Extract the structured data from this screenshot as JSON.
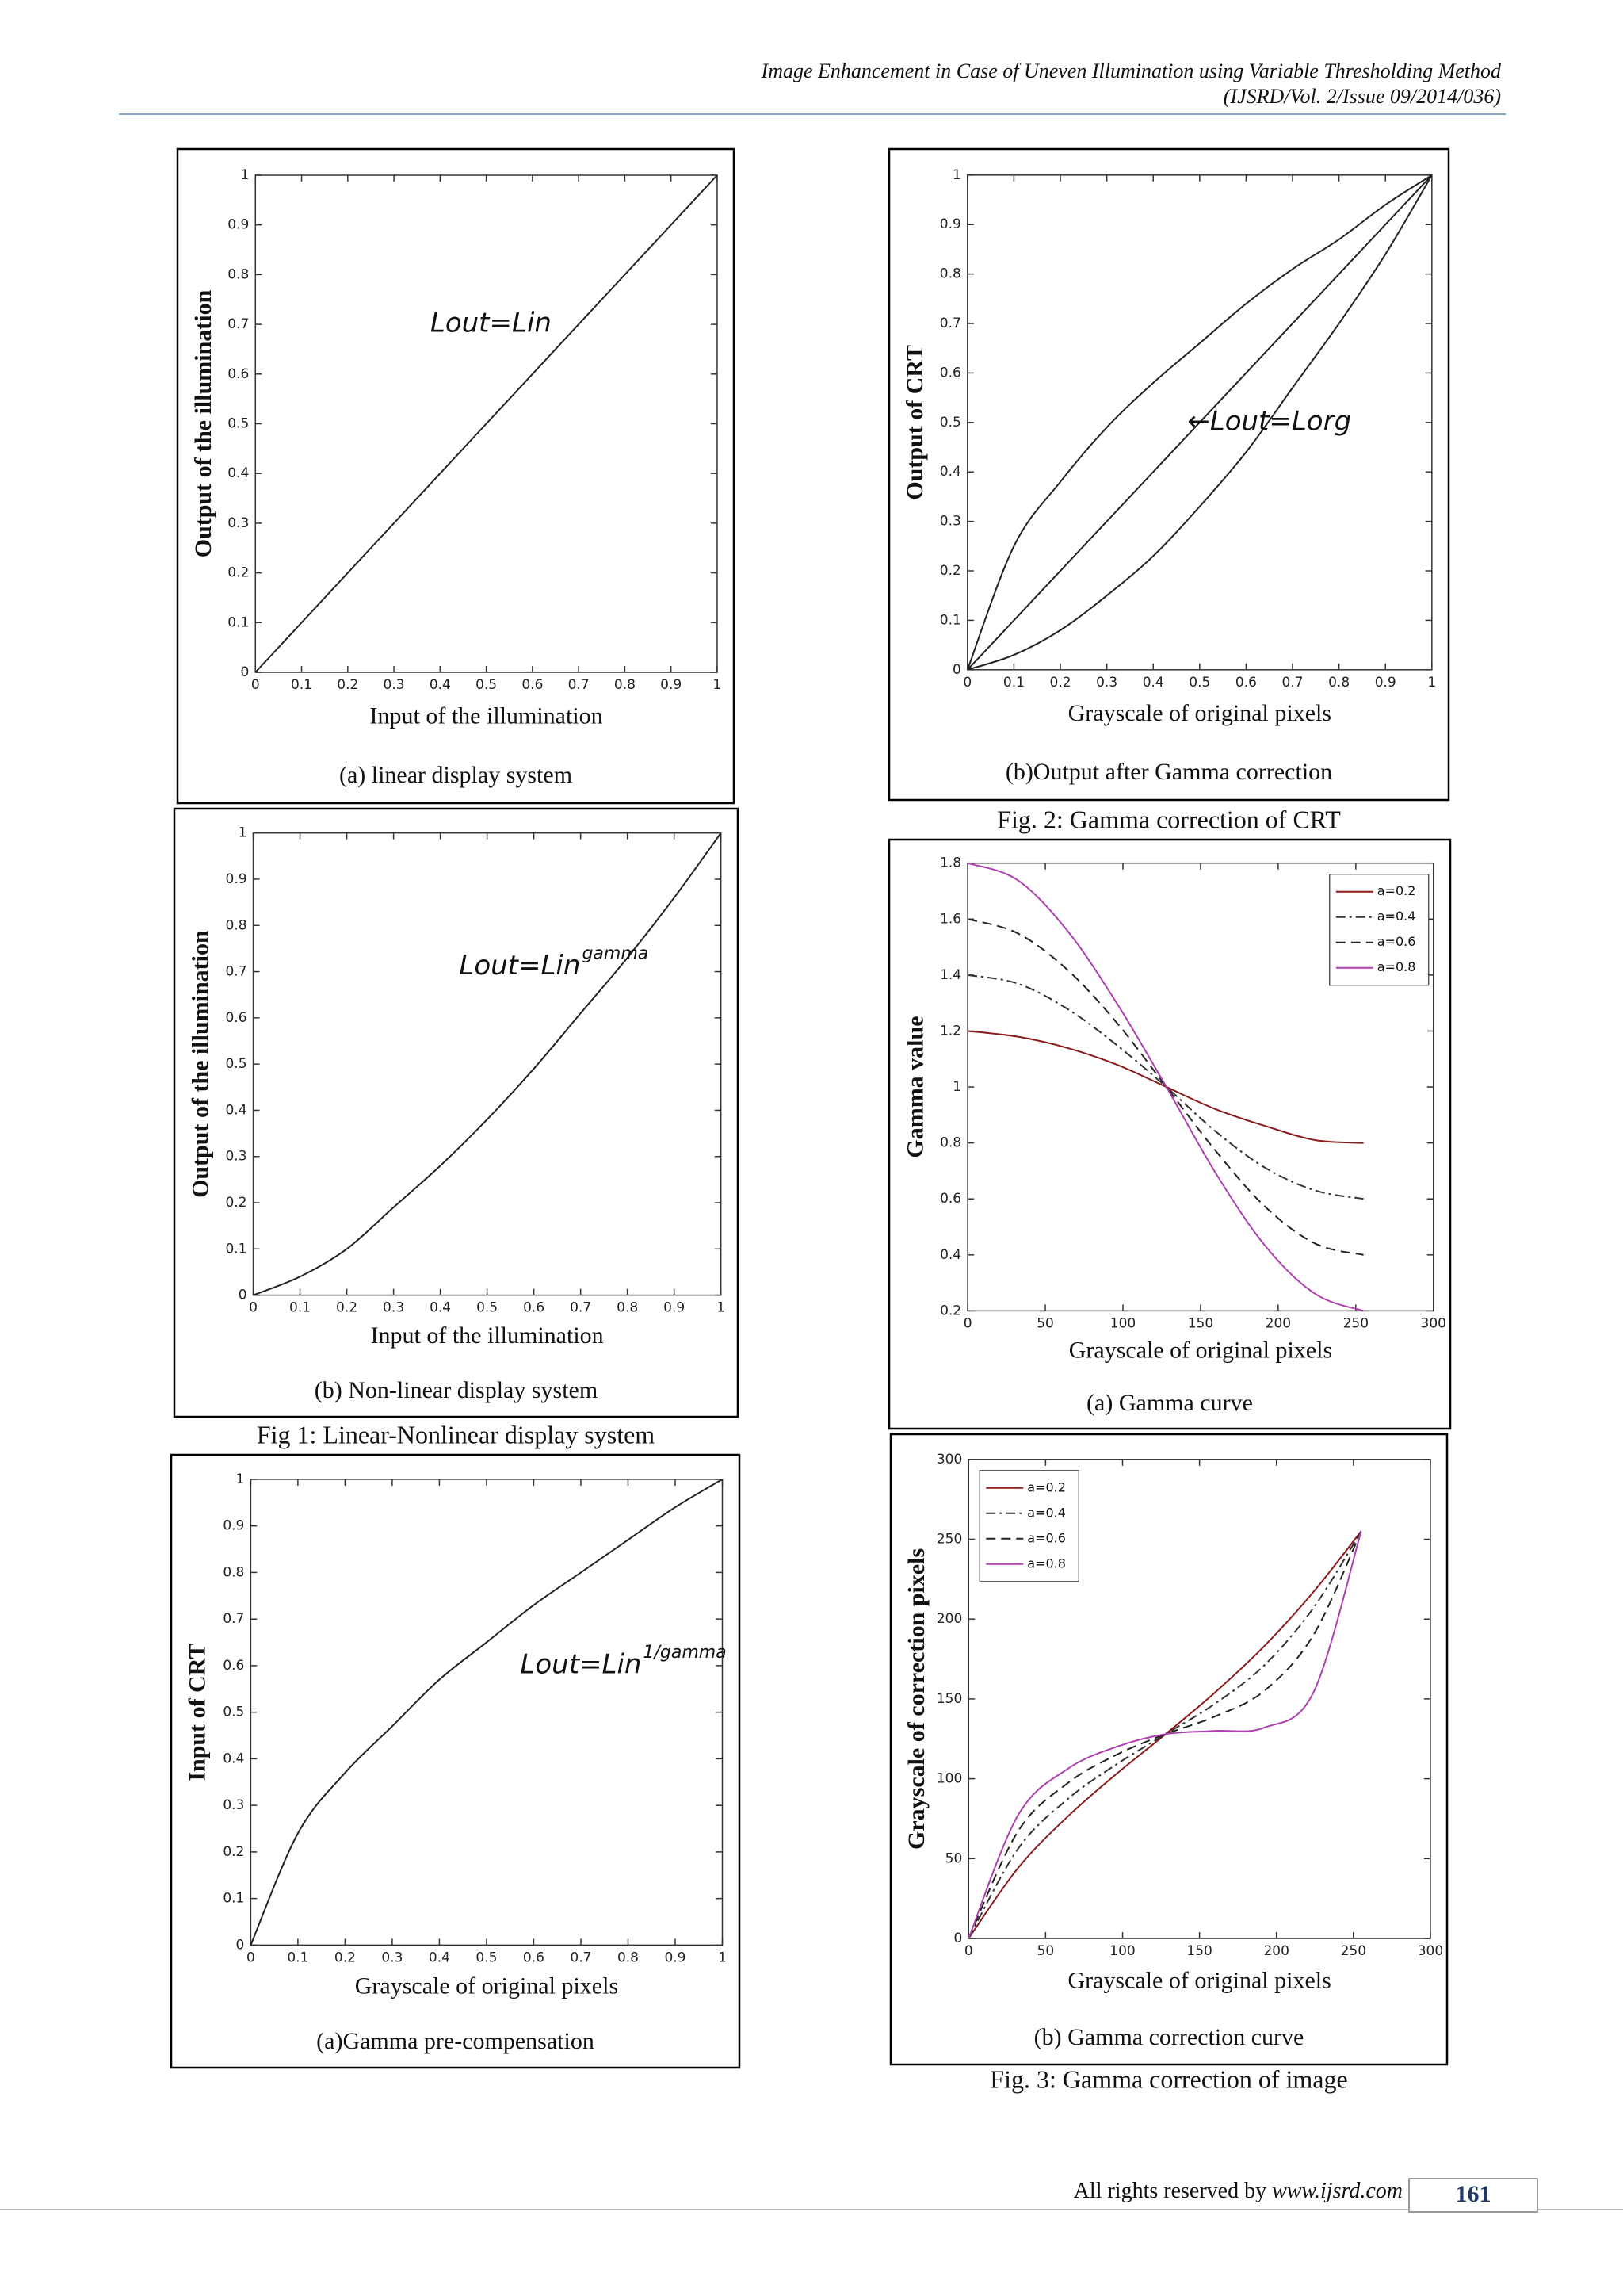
{
  "header": {
    "title": "Image Enhancement in Case of Uneven Illumination using Variable Thresholding Method",
    "citation": "(IJSRD/Vol. 2/Issue 09/2014/036)"
  },
  "captions": [
    "Fig. 2: Gamma correction of CRT",
    "Fig 1: Linear-Nonlinear display system",
    "Fig. 3: Gamma correction of image"
  ],
  "chart_data": [
    {
      "type": "line",
      "title": "(a) linear display system",
      "x_label": "Input of the illumination",
      "y_label": "Output of the illumination",
      "annotation": "Lout=Lin",
      "x": [
        0,
        0.1,
        0.2,
        0.3,
        0.4,
        0.5,
        0.6,
        0.7,
        0.8,
        0.9,
        1
      ],
      "series": [
        {
          "color": "#222222",
          "dash": "solid",
          "values": [
            0,
            0.1,
            0.2,
            0.3,
            0.4,
            0.5,
            0.6,
            0.7,
            0.8,
            0.9,
            1
          ]
        }
      ],
      "xlim": [
        0,
        1
      ],
      "ylim": [
        0,
        1
      ],
      "xticks": [
        0,
        0.1,
        0.2,
        0.3,
        0.4,
        0.5,
        0.6,
        0.7,
        0.8,
        0.9,
        1
      ],
      "yticks": [
        0,
        0.1,
        0.2,
        0.3,
        0.4,
        0.5,
        0.6,
        0.7,
        0.8,
        0.9,
        1
      ]
    },
    {
      "type": "line",
      "title": "(b)Output after Gamma correction",
      "x_label": "Grayscale of original pixels",
      "y_label": "Output of CRT",
      "annotation": "←Lout=Lorg",
      "x": [
        0,
        0.1,
        0.2,
        0.3,
        0.4,
        0.5,
        0.6,
        0.7,
        0.8,
        0.9,
        1
      ],
      "series": [
        {
          "color": "#222222",
          "dash": "solid",
          "values": [
            0,
            0.25,
            0.38,
            0.49,
            0.58,
            0.66,
            0.74,
            0.81,
            0.87,
            0.94,
            1
          ]
        },
        {
          "color": "#222222",
          "dash": "solid",
          "values": [
            0,
            0.1,
            0.2,
            0.3,
            0.4,
            0.5,
            0.6,
            0.7,
            0.8,
            0.9,
            1
          ]
        },
        {
          "color": "#222222",
          "dash": "solid",
          "values": [
            0,
            0.03,
            0.08,
            0.15,
            0.23,
            0.33,
            0.44,
            0.57,
            0.7,
            0.84,
            1
          ]
        }
      ],
      "xlim": [
        0,
        1
      ],
      "ylim": [
        0,
        1
      ],
      "xticks": [
        0,
        0.1,
        0.2,
        0.3,
        0.4,
        0.5,
        0.6,
        0.7,
        0.8,
        0.9,
        1
      ],
      "yticks": [
        0,
        0.1,
        0.2,
        0.3,
        0.4,
        0.5,
        0.6,
        0.7,
        0.8,
        0.9,
        1
      ]
    },
    {
      "type": "line",
      "title": "(b) Non-linear display system",
      "x_label": "Input of the illumination",
      "y_label": "Output of the illumination",
      "annotation": "Lout=Lin",
      "annotation_sup": "gamma",
      "x": [
        0,
        0.1,
        0.2,
        0.3,
        0.4,
        0.5,
        0.6,
        0.7,
        0.8,
        0.9,
        1
      ],
      "series": [
        {
          "color": "#222222",
          "dash": "solid",
          "values": [
            0,
            0.04,
            0.1,
            0.19,
            0.28,
            0.38,
            0.49,
            0.61,
            0.73,
            0.86,
            1
          ]
        }
      ],
      "xlim": [
        0,
        1
      ],
      "ylim": [
        0,
        1
      ],
      "xticks": [
        0,
        0.1,
        0.2,
        0.3,
        0.4,
        0.5,
        0.6,
        0.7,
        0.8,
        0.9,
        1
      ],
      "yticks": [
        0,
        0.1,
        0.2,
        0.3,
        0.4,
        0.5,
        0.6,
        0.7,
        0.8,
        0.9,
        1
      ]
    },
    {
      "type": "line",
      "title": "(a) Gamma curve",
      "x_label": "Grayscale of original pixels",
      "y_label": "Gamma value",
      "legend": "upper right",
      "x": [
        0,
        32,
        64,
        96,
        128,
        160,
        192,
        224,
        255
      ],
      "series": [
        {
          "name": "a=0.2",
          "color": "#8b1a1a",
          "dash": "solid",
          "values": [
            1.2,
            1.18,
            1.14,
            1.08,
            1.0,
            0.92,
            0.86,
            0.81,
            0.8
          ]
        },
        {
          "name": "a=0.4",
          "color": "#333333",
          "dash": "dashdot",
          "values": [
            1.4,
            1.37,
            1.28,
            1.15,
            1.0,
            0.84,
            0.71,
            0.63,
            0.6
          ]
        },
        {
          "name": "a=0.6",
          "color": "#222222",
          "dash": "dashed",
          "values": [
            1.6,
            1.55,
            1.42,
            1.23,
            1.0,
            0.77,
            0.57,
            0.44,
            0.4
          ]
        },
        {
          "name": "a=0.8",
          "color": "#b040b0",
          "dash": "solid",
          "values": [
            1.8,
            1.74,
            1.56,
            1.3,
            1.0,
            0.69,
            0.43,
            0.26,
            0.2
          ]
        }
      ],
      "xlim": [
        0,
        300
      ],
      "ylim": [
        0.2,
        1.8
      ],
      "xticks": [
        0,
        50,
        100,
        150,
        200,
        250,
        300
      ],
      "yticks": [
        0.2,
        0.4,
        0.6,
        0.8,
        1,
        1.2,
        1.4,
        1.6,
        1.8
      ]
    },
    {
      "type": "line",
      "title": "(a)Gamma pre-compensation",
      "x_label": "Grayscale of original pixels",
      "y_label": "Input of CRT",
      "annotation": "Lout=Lin",
      "annotation_sup": "1/gamma",
      "x": [
        0,
        0.1,
        0.2,
        0.3,
        0.4,
        0.5,
        0.6,
        0.7,
        0.8,
        0.9,
        1
      ],
      "series": [
        {
          "color": "#222222",
          "dash": "solid",
          "values": [
            0,
            0.24,
            0.37,
            0.47,
            0.57,
            0.65,
            0.73,
            0.8,
            0.87,
            0.94,
            1
          ]
        }
      ],
      "xlim": [
        0,
        1
      ],
      "ylim": [
        0,
        1
      ],
      "xticks": [
        0,
        0.1,
        0.2,
        0.3,
        0.4,
        0.5,
        0.6,
        0.7,
        0.8,
        0.9,
        1
      ],
      "yticks": [
        0,
        0.1,
        0.2,
        0.3,
        0.4,
        0.5,
        0.6,
        0.7,
        0.8,
        0.9,
        1
      ]
    },
    {
      "type": "line",
      "title": "(b) Gamma correction curve",
      "x_label": "Grayscale of original pixels",
      "y_label": "Grayscale of correction pixels",
      "legend": "upper left",
      "x": [
        0,
        32,
        64,
        96,
        128,
        160,
        192,
        224,
        255
      ],
      "series": [
        {
          "name": "a=0.2",
          "color": "#8b1a1a",
          "dash": "solid",
          "values": [
            0,
            44,
            76,
            103,
            128,
            154,
            183,
            217,
            255
          ]
        },
        {
          "name": "a=0.4",
          "color": "#333333",
          "dash": "dashdot",
          "values": [
            0,
            56,
            87,
            109,
            128,
            147,
            171,
            207,
            255
          ]
        },
        {
          "name": "a=0.6",
          "color": "#222222",
          "dash": "dashed",
          "values": [
            0,
            67,
            97,
            115,
            128,
            139,
            155,
            190,
            255
          ]
        },
        {
          "name": "a=0.8",
          "color": "#b040b0",
          "dash": "solid",
          "values": [
            0,
            77,
            106,
            120,
            128,
            130,
            132,
            154,
            255
          ]
        }
      ],
      "xlim": [
        0,
        300
      ],
      "ylim": [
        0,
        300
      ],
      "xticks": [
        0,
        50,
        100,
        150,
        200,
        250,
        300
      ],
      "yticks": [
        0,
        50,
        100,
        150,
        200,
        250,
        300
      ]
    }
  ],
  "footer": {
    "rights": "All rights reserved by",
    "site": "www.ijsrd.com",
    "page": "161"
  }
}
